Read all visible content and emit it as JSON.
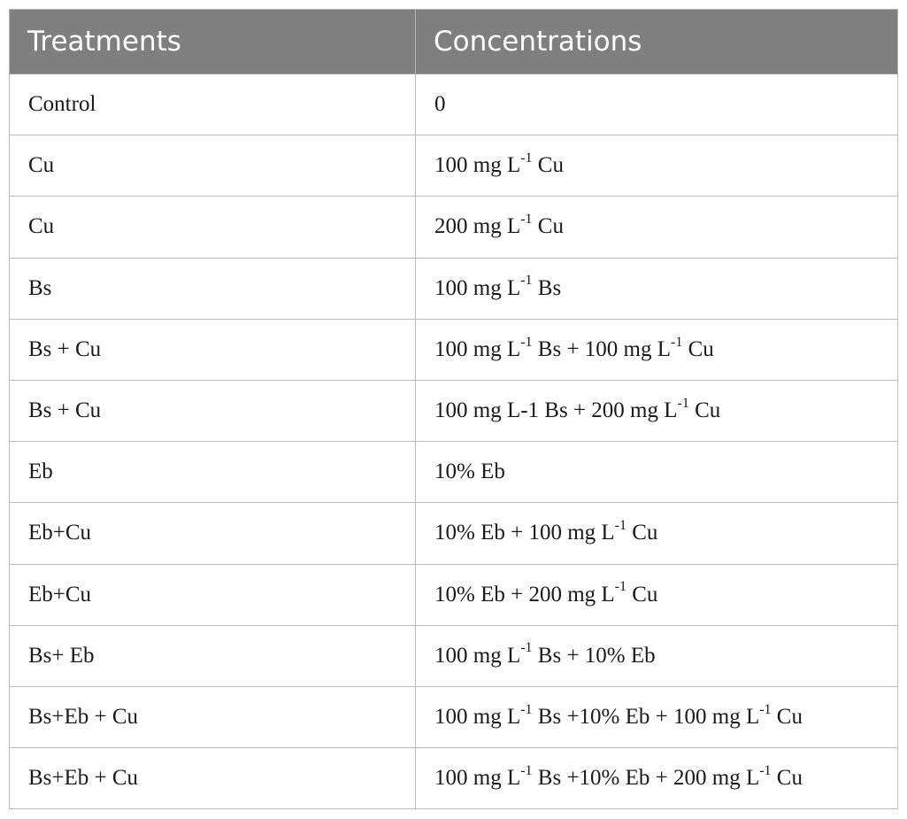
{
  "table": {
    "headers": [
      "Treatments",
      "Concentrations"
    ],
    "rows": [
      {
        "treatment": "Control",
        "concentration": [
          {
            "t": "0"
          }
        ]
      },
      {
        "treatment": "Cu",
        "concentration": [
          {
            "t": "100 mg L"
          },
          {
            "sup": "-1"
          },
          {
            "t": " Cu"
          }
        ]
      },
      {
        "treatment": "Cu",
        "concentration": [
          {
            "t": "200 mg L"
          },
          {
            "sup": "-1"
          },
          {
            "t": " Cu"
          }
        ]
      },
      {
        "treatment": "Bs",
        "concentration": [
          {
            "t": "100 mg L"
          },
          {
            "sup": "-1"
          },
          {
            "t": " Bs"
          }
        ]
      },
      {
        "treatment": "Bs + Cu",
        "concentration": [
          {
            "t": "100 mg L"
          },
          {
            "sup": "-1"
          },
          {
            "t": " Bs + 100 mg L"
          },
          {
            "sup": "-1"
          },
          {
            "t": " Cu"
          }
        ]
      },
      {
        "treatment": "Bs + Cu",
        "concentration": [
          {
            "t": "100 mg L-1 Bs + 200 mg L"
          },
          {
            "sup": "-1"
          },
          {
            "t": " Cu"
          }
        ]
      },
      {
        "treatment": "Eb",
        "concentration": [
          {
            "t": "10% Eb"
          }
        ]
      },
      {
        "treatment": "Eb+Cu",
        "concentration": [
          {
            "t": "10% Eb + 100 mg L"
          },
          {
            "sup": "-1"
          },
          {
            "t": " Cu"
          }
        ]
      },
      {
        "treatment": "Eb+Cu",
        "concentration": [
          {
            "t": "10% Eb + 200 mg L"
          },
          {
            "sup": "-1"
          },
          {
            "t": " Cu"
          }
        ]
      },
      {
        "treatment": "Bs+ Eb",
        "concentration": [
          {
            "t": "100 mg L"
          },
          {
            "sup": "-1"
          },
          {
            "t": " Bs + 10% Eb"
          }
        ]
      },
      {
        "treatment": "Bs+Eb + Cu",
        "concentration": [
          {
            "t": "100 mg L"
          },
          {
            "sup": "-1"
          },
          {
            "t": " Bs +10% Eb + 100 mg L"
          },
          {
            "sup": "-1"
          },
          {
            "t": " Cu"
          }
        ]
      },
      {
        "treatment": "Bs+Eb + Cu",
        "concentration": [
          {
            "t": "100 mg L"
          },
          {
            "sup": "-1"
          },
          {
            "t": " Bs +10% Eb + 200 mg L"
          },
          {
            "sup": "-1"
          },
          {
            "t": " Cu"
          }
        ]
      }
    ]
  },
  "colors": {
    "header_bg": "#7f7f7f",
    "header_text": "#ffffff",
    "border": "#bcbcbc"
  }
}
